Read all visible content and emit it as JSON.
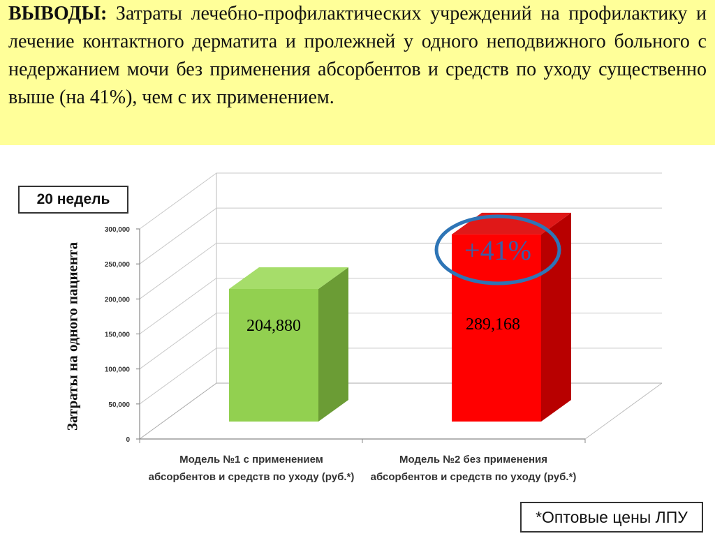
{
  "header": {
    "conclusion_label": "ВЫВОДЫ:",
    "conclusion_text": "Затраты лечебно-профилактических учреждений на профилактику и лечение контактного дерматита и пролежней у одного неподвижного больного с недержанием мочи без применения абсорбентов и средств по уходу существенно выше (на 41%), чем с их применением."
  },
  "weeks_label": "20 недель",
  "footnote": "*Оптовые цены ЛПУ",
  "callout_label": "+41%",
  "colors": {
    "banner": "#ffff99",
    "bar1_front": "#92d050",
    "bar2_front": "#ff0000",
    "callout_ring": "#2e75b6"
  },
  "chart_data": {
    "type": "bar",
    "categories": [
      "Модель №1 с применением абсорбентов и средств по уходу (руб.*)",
      "Модель №2 без применения абсорбентов и средств по уходу (руб.*)"
    ],
    "values": [
      204880,
      289168
    ],
    "data_labels": [
      "204,880",
      "289,168"
    ],
    "ylabel": "Затраты на одного пациента",
    "ylim": [
      0,
      300000
    ],
    "yticks": [
      0,
      50000,
      100000,
      150000,
      200000,
      250000,
      300000
    ],
    "ytick_labels": [
      "0",
      "50,000",
      "100,000",
      "150,000",
      "200,000",
      "250,000",
      "300,000"
    ],
    "grid": true,
    "three_d": true
  }
}
